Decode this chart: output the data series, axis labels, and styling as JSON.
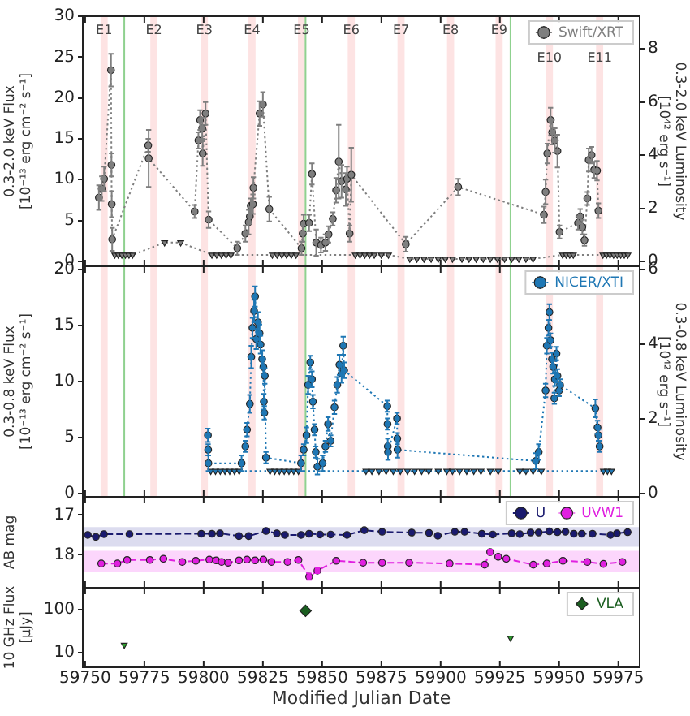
{
  "chart_data": [
    {
      "type": "line",
      "ylabel": "0.3-2.0 keV Flux\n[10⁻¹³ erg cm⁻² s⁻¹]",
      "y2label": "0.3-2.0 keV Luminosity\n[10⁴² erg s⁻¹]",
      "xlim": [
        59749,
        59984
      ],
      "xticks": [
        59750,
        59775,
        59800,
        59825,
        59850,
        59875,
        59900,
        59925,
        59950,
        59975
      ],
      "ylim": [
        -0.6,
        30
      ],
      "yticks": [
        0,
        5,
        10,
        15,
        20,
        25,
        30
      ],
      "y2lim": [
        -0.18,
        9.23
      ],
      "y2ticks": [
        0,
        2,
        4,
        6,
        8
      ],
      "tick_labels": "y",
      "legend": "top right",
      "series": [
        {
          "name": "Swift/XRT",
          "color": "#7f7f7f",
          "marker": "circle",
          "line_style": "dotted",
          "x": [
            59755.8,
            59757.0,
            59758.0,
            59760.9,
            59761.1,
            59761.2,
            59761.4,
            59776.6,
            59776.8,
            59796.2,
            59797.8,
            59798.5,
            59799.4,
            59799.6,
            59800.8,
            59802.1,
            59814.2,
            59817.6,
            59819.0,
            59819.5,
            59819.9,
            59820.8,
            59821.0,
            59823.6,
            59825.0,
            59827.7,
            59841.3,
            59841.8,
            59842.2,
            59844.5,
            59845.7,
            59847.5,
            59849.5,
            59851.4,
            59852.7,
            59854.5,
            59855.9,
            59857.0,
            59858.2,
            59860.0,
            59860.5,
            59861.6,
            59862.3,
            59885.3,
            59907.4,
            59943.6,
            59944.3,
            59945.0,
            59946.4,
            59947.1,
            59948.2,
            59949.3,
            59950.2,
            59958.0,
            59958.9,
            59959.8,
            59960.7,
            59961.9,
            59962.5,
            59963.7,
            59964.8,
            59966.0,
            59966.6
          ],
          "values": [
            7.8,
            8.9,
            10.1,
            23.4,
            11.8,
            7.0,
            2.7,
            14.2,
            12.6,
            6.1,
            14.8,
            17.3,
            16.3,
            13.2,
            18.1,
            5.1,
            1.6,
            3.4,
            4.8,
            5.5,
            6.8,
            7.0,
            9.0,
            18.1,
            19.2,
            6.4,
            1.6,
            3.4,
            4.6,
            4.7,
            10.7,
            2.3,
            2.0,
            2.3,
            3.3,
            5.2,
            8.7,
            12.2,
            9.8,
            8.8,
            10.1,
            3.4,
            10.6,
            2.1,
            9.1,
            5.7,
            8.5,
            13.2,
            17.3,
            15.8,
            14.8,
            13.5,
            3.6,
            4.7,
            5.5,
            4.2,
            2.6,
            7.7,
            12.4,
            13.0,
            11.2,
            11.1,
            6.2
          ],
          "errors": [
            1.5,
            1.5,
            1.5,
            2.0,
            1.4,
            1.6,
            1.4,
            0.8,
            3.5,
            0.8,
            1.0,
            1.2,
            1.3,
            1.5,
            1.4,
            1.0,
            0.8,
            1.0,
            1.5,
            0.9,
            0.9,
            1.2,
            1.3,
            1.5,
            1.5,
            1.5,
            0.8,
            1.0,
            1.1,
            1.0,
            1.3,
            1.6,
            0.9,
            1.0,
            1.0,
            0.8,
            1.5,
            4.5,
            2.0,
            2.0,
            1.5,
            1.0,
            3.3,
            0.9,
            1.0,
            1.0,
            1.5,
            1.2,
            1.5,
            1.5,
            1.5,
            2.0,
            0.8,
            0.8,
            0.9,
            0.9,
            0.7,
            0.8,
            1.4,
            1.0,
            1.0,
            1.2,
            0.9
          ]
        },
        {
          "color": "#7f7f7f",
          "marker": "triangle",
          "line_style": "dotted",
          "x": [
            59762.5,
            59764.0,
            59765.5,
            59767.0,
            59768.5,
            59770.0,
            59783.5,
            59790.3,
            59803.5,
            59805.5,
            59807.5,
            59809.5,
            59811.5,
            59829,
            59831,
            59833,
            59835,
            59837,
            59839,
            59864,
            59866,
            59868,
            59870,
            59872,
            59875,
            59878,
            59887,
            59890,
            59893,
            59896,
            59899,
            59902,
            59905,
            59909,
            59912,
            59915,
            59918,
            59921,
            59924,
            59927,
            59930,
            59933,
            59936,
            59939,
            59951.5,
            59953,
            59954.5,
            59956,
            59968.5,
            59970,
            59971.5,
            59973,
            59974.5,
            59976,
            59977.5,
            59979
          ],
          "values": [
            0.8,
            0.8,
            0.8,
            0.8,
            0.8,
            0.8,
            2.3,
            2.3,
            0.8,
            0.8,
            0.8,
            0.8,
            0.8,
            0.8,
            0.8,
            0.8,
            0.8,
            0.8,
            0.8,
            0.8,
            0.8,
            0.8,
            0.8,
            0.8,
            0.8,
            0.8,
            0.3,
            0.3,
            0.3,
            0.3,
            0.3,
            0.3,
            0.3,
            0.3,
            0.3,
            0.3,
            0.3,
            0.3,
            0.3,
            0.3,
            0.3,
            0.3,
            0.3,
            0.3,
            0.8,
            0.8,
            0.8,
            0.8,
            0.8,
            0.8,
            0.8,
            0.8,
            0.8,
            0.8,
            0.8,
            0.8
          ]
        }
      ],
      "bands": [
        {
          "axis": "x",
          "from": 59756.5,
          "to": 59759.5,
          "label": "E1",
          "color": "#fde3e3"
        },
        {
          "axis": "x",
          "from": 59777.5,
          "to": 59780.5,
          "label": "E2",
          "color": "#fde3e3"
        },
        {
          "axis": "x",
          "from": 59798.8,
          "to": 59801.8,
          "label": "E3",
          "color": "#fde3e3"
        },
        {
          "axis": "x",
          "from": 59818.9,
          "to": 59821.9,
          "label": "E4",
          "color": "#fde3e3"
        },
        {
          "axis": "x",
          "from": 59839.8,
          "to": 59842.8,
          "label": "E5",
          "color": "#fde3e3"
        },
        {
          "axis": "x",
          "from": 59860.8,
          "to": 59863.8,
          "label": "E6",
          "color": "#fde3e3"
        },
        {
          "axis": "x",
          "from": 59881.8,
          "to": 59884.8,
          "label": "E7",
          "color": "#fde3e3"
        },
        {
          "axis": "x",
          "from": 59902.7,
          "to": 59905.7,
          "label": "E8",
          "color": "#fde3e3"
        },
        {
          "axis": "x",
          "from": 59923.2,
          "to": 59926.2,
          "label": "E9",
          "color": "#fde3e3"
        },
        {
          "axis": "x",
          "from": 59944.4,
          "to": 59947.4,
          "label": "E10",
          "color": "#fde3e3"
        },
        {
          "axis": "x",
          "from": 59965.6,
          "to": 59968.6,
          "label": "E11",
          "color": "#fde3e3"
        }
      ],
      "ref_lines": [
        {
          "axis": "x",
          "value": 59766.5,
          "color": "#8fd18f"
        },
        {
          "axis": "x",
          "value": 59843,
          "color": "#8fd18f"
        },
        {
          "axis": "x",
          "value": 59929.5,
          "color": "#8fd18f"
        }
      ]
    },
    {
      "type": "line",
      "ylabel": "0.3-0.8 keV Flux\n[10⁻¹³ erg cm⁻² s⁻¹]",
      "y2label": "0.3-0.8 keV Luminosity\n[10⁴² erg s⁻¹]",
      "xlim": [
        59749,
        59984
      ],
      "xticks": [
        59750,
        59775,
        59800,
        59825,
        59850,
        59875,
        59900,
        59925,
        59950,
        59975
      ],
      "ylim": [
        -0.3,
        20.3
      ],
      "yticks": [
        0,
        5,
        10,
        15,
        20
      ],
      "y2lim": [
        -0.09,
        6.09
      ],
      "y2ticks": [
        0,
        2,
        4,
        6
      ],
      "tick_labels": "y",
      "legend": "top right",
      "series": [
        {
          "name": "NICER/XTI",
          "color": "#1f77b4",
          "marker": "circle",
          "line_style": "dotted",
          "x": [
            59801.8,
            59801.9,
            59802.0,
            59816.0,
            59817.6,
            59818.3,
            59819.5,
            59820.1,
            59820.6,
            59821.3,
            59821.7,
            59822.2,
            59822.9,
            59823.6,
            59824.0,
            59824.7,
            59825.2,
            59825.4,
            59825.6,
            59825.8,
            59826.3,
            59841.1,
            59842.2,
            59843.4,
            59844.1,
            59845.0,
            59845.7,
            59846.1,
            59846.8,
            59847.3,
            59848.0,
            59850.2,
            59851.4,
            59852.5,
            59853.6,
            59855.2,
            59856.4,
            59857.3,
            59858.2,
            59858.9,
            59859.3,
            59877.5,
            59877.6,
            59877.7,
            59877.8,
            59881.6,
            59881.7,
            59881.8,
            59940.2,
            59941.4,
            59944.3,
            59944.8,
            59945.5,
            59945.9,
            59946.4,
            59947.0,
            59947.5,
            59948.0,
            59948.2,
            59948.9,
            59949.3,
            59950.0,
            59950.4,
            59965.3,
            59966.2,
            59966.6,
            59967.1
          ],
          "values": [
            5.2,
            3.9,
            2.7,
            2.7,
            4.2,
            5.7,
            8.0,
            12.2,
            14.8,
            16.3,
            17.6,
            13.8,
            15.3,
            14.3,
            13.3,
            12.0,
            11.3,
            8.2,
            7.2,
            10.5,
            3.2,
            2.7,
            3.9,
            5.2,
            9.7,
            11.7,
            10.2,
            8.2,
            5.7,
            3.7,
            2.4,
            2.7,
            4.2,
            6.2,
            4.7,
            7.7,
            9.7,
            11.5,
            10.7,
            13.2,
            11.0,
            7.8,
            6.2,
            4.2,
            3.7,
            6.7,
            4.9,
            3.9,
            2.9,
            3.7,
            9.2,
            13.2,
            14.8,
            16.2,
            13.7,
            12.0,
            11.3,
            8.5,
            10.2,
            12.5,
            10.5,
            9.2,
            9.7,
            7.6,
            5.9,
            5.2,
            4.2
          ],
          "errors": [
            0.6,
            0.5,
            0.7,
            0.7,
            0.5,
            0.6,
            0.8,
            1.0,
            0.9,
            1.0,
            0.9,
            0.9,
            0.9,
            0.8,
            0.8,
            0.8,
            0.7,
            0.7,
            0.6,
            0.7,
            0.5,
            0.7,
            0.5,
            0.7,
            0.8,
            0.6,
            0.7,
            0.6,
            0.5,
            0.5,
            0.7,
            0.7,
            0.5,
            0.6,
            0.5,
            0.6,
            0.7,
            0.9,
            0.8,
            0.8,
            0.7,
            0.5,
            0.5,
            0.7,
            0.7,
            0.5,
            0.5,
            0.7,
            0.7,
            0.7,
            0.6,
            0.7,
            0.7,
            0.7,
            0.6,
            0.6,
            0.6,
            0.5,
            0.6,
            0.6,
            0.6,
            0.5,
            0.5,
            0.8,
            0.6,
            0.5,
            0.5
          ]
        },
        {
          "color": "#1f77b4",
          "marker": "triangle",
          "line_style": "dotted",
          "x": [
            59803,
            59805,
            59807,
            59809,
            59811,
            59813,
            59815,
            59828,
            59830,
            59832,
            59834,
            59836,
            59838,
            59840,
            59868.5,
            59871,
            59874,
            59877,
            59880,
            59883,
            59886,
            59889,
            59892,
            59895,
            59899,
            59902.6,
            59905,
            59908,
            59911,
            59914,
            59917,
            59921,
            59924.3,
            59933.4,
            59936,
            59939,
            59942.5,
            59968.7,
            59970.4,
            59972.1
          ],
          "values": [
            2.0,
            2.0,
            2.0,
            2.0,
            2.0,
            2.0,
            2.0,
            2.0,
            2.0,
            2.0,
            2.0,
            2.0,
            2.0,
            2.0,
            2.0,
            2.0,
            2.0,
            2.0,
            2.0,
            2.0,
            2.0,
            2.0,
            2.0,
            2.0,
            2.0,
            2.0,
            2.0,
            2.0,
            2.0,
            2.0,
            2.0,
            2.0,
            2.0,
            2.0,
            2.0,
            2.0,
            2.0,
            2.0,
            2.0,
            2.0
          ]
        }
      ],
      "bands": [
        {
          "axis": "x",
          "from": 59756.5,
          "to": 59759.5,
          "color": "#fde3e3"
        },
        {
          "axis": "x",
          "from": 59777.5,
          "to": 59780.5,
          "color": "#fde3e3"
        },
        {
          "axis": "x",
          "from": 59798.8,
          "to": 59801.8,
          "color": "#fde3e3"
        },
        {
          "axis": "x",
          "from": 59818.9,
          "to": 59821.9,
          "color": "#fde3e3"
        },
        {
          "axis": "x",
          "from": 59839.8,
          "to": 59842.8,
          "color": "#fde3e3"
        },
        {
          "axis": "x",
          "from": 59860.8,
          "to": 59863.8,
          "color": "#fde3e3"
        },
        {
          "axis": "x",
          "from": 59881.8,
          "to": 59884.8,
          "color": "#fde3e3"
        },
        {
          "axis": "x",
          "from": 59902.7,
          "to": 59905.7,
          "color": "#fde3e3"
        },
        {
          "axis": "x",
          "from": 59923.2,
          "to": 59926.2,
          "color": "#fde3e3"
        },
        {
          "axis": "x",
          "from": 59944.4,
          "to": 59947.4,
          "color": "#fde3e3"
        },
        {
          "axis": "x",
          "from": 59965.6,
          "to": 59968.6,
          "color": "#fde3e3"
        }
      ],
      "ref_lines": [
        {
          "axis": "x",
          "value": 59766.5,
          "color": "#8fd18f"
        },
        {
          "axis": "x",
          "value": 59843,
          "color": "#8fd18f"
        },
        {
          "axis": "x",
          "value": 59929.5,
          "color": "#8fd18f"
        }
      ]
    },
    {
      "type": "line",
      "ylabel": "AB mag",
      "xlim": [
        59749,
        59984
      ],
      "xticks": [
        59750,
        59775,
        59800,
        59825,
        59850,
        59875,
        59900,
        59925,
        59950,
        59975
      ],
      "ylim": [
        18.83,
        16.54
      ],
      "yticks": [
        17,
        18
      ],
      "tick_labels": "y",
      "legend": "top right",
      "series": [
        {
          "name": "U",
          "color": "#1a1a6e",
          "marker": "circle",
          "line_style": "dashed",
          "x": [
            59751.1,
            59754.5,
            59757.9,
            59768.7,
            59799.0,
            59803.5,
            59806.9,
            59814.9,
            59819.0,
            59826.3,
            59830.9,
            59834.3,
            59841.1,
            59844.5,
            59849.1,
            59853.6,
            59860.5,
            59867.8,
            59875.3,
            59887.8,
            59895.1,
            59898.8,
            59906.0,
            59910.1,
            59917.4,
            59922.0,
            59930.0,
            59933.4,
            59938.0,
            59941.4,
            59945.9,
            59949.3,
            59952.7,
            59956.2,
            59959.6,
            59964.1,
            59971.7,
            59974.4,
            59978.9
          ],
          "values": [
            17.5,
            17.55,
            17.48,
            17.48,
            17.47,
            17.47,
            17.46,
            17.53,
            17.53,
            17.4,
            17.46,
            17.5,
            17.5,
            17.47,
            17.49,
            17.49,
            17.5,
            17.38,
            17.42,
            17.44,
            17.45,
            17.52,
            17.42,
            17.42,
            17.47,
            17.49,
            17.46,
            17.48,
            17.44,
            17.44,
            17.41,
            17.43,
            17.42,
            17.47,
            17.47,
            17.47,
            17.5,
            17.46,
            17.43
          ]
        },
        {
          "name": "UVW1",
          "color": "#e020e0",
          "marker": "circle",
          "line_style": "dashed",
          "x": [
            59756.8,
            59763.6,
            59767.7,
            59777.3,
            59783.0,
            59791.0,
            59796.7,
            59802.4,
            59805.3,
            59807.6,
            59810.3,
            59814.9,
            59818.3,
            59821.7,
            59825.2,
            59828.6,
            59835.4,
            59840.0,
            59844.5,
            59848.0,
            59855.9,
            59867.3,
            59875.3,
            59886.7,
            59903.8,
            59918.6,
            59920.9,
            59924.3,
            59927.7,
            59939.1,
            59944.8,
            59951.6,
            59961.9,
            59968.7,
            59976.7
          ],
          "values": [
            18.22,
            18.22,
            18.13,
            18.13,
            18.1,
            18.18,
            18.15,
            18.12,
            18.14,
            18.18,
            18.2,
            18.14,
            18.12,
            18.14,
            18.12,
            18.18,
            18.18,
            18.13,
            18.55,
            18.4,
            18.15,
            18.2,
            18.2,
            18.2,
            18.22,
            18.25,
            17.93,
            18.05,
            18.1,
            18.25,
            18.22,
            18.15,
            18.18,
            18.23,
            18.18
          ],
          "errors": [
            null,
            null,
            null,
            null,
            null,
            null,
            null,
            null,
            null,
            null,
            null,
            null,
            null,
            null,
            null,
            null,
            null,
            null,
            0.08,
            0.06,
            null,
            null,
            null,
            null,
            null,
            null,
            0.06,
            null,
            null,
            null,
            null,
            null,
            null,
            null,
            null
          ]
        }
      ],
      "bands": [
        {
          "axis": "y",
          "from": 17.3,
          "to": 17.8,
          "color": "#dcdcef"
        },
        {
          "axis": "y",
          "from": 17.9,
          "to": 18.42,
          "color": "#fcd6fc"
        }
      ]
    },
    {
      "type": "scatter",
      "ylabel": "10 GHz Flux\n[μJy]",
      "xlabel": "Modified Julian Date",
      "xlim": [
        59749,
        59984
      ],
      "xticks": [
        59750,
        59775,
        59800,
        59825,
        59850,
        59875,
        59900,
        59925,
        59950,
        59975
      ],
      "ylim": [
        4.5,
        330
      ],
      "yticks": [
        10,
        100
      ],
      "log": "y",
      "legend": "top right",
      "series": [
        {
          "name": "VLA",
          "color": "#1b5e20",
          "marker": "diamond",
          "x": [
            59843
          ],
          "values": [
            95
          ],
          "errors": [
            10
          ]
        },
        {
          "color": "#2ca02c",
          "marker": "triangle",
          "x": [
            59766.5,
            59929.5
          ],
          "values": [
            15,
            22
          ]
        }
      ]
    }
  ]
}
